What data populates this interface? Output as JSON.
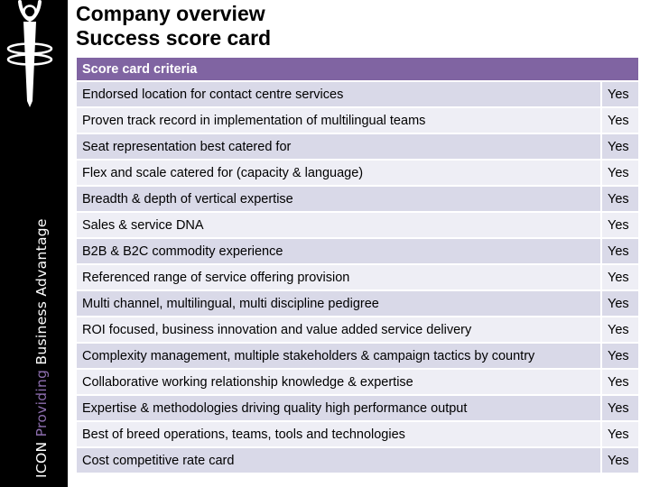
{
  "title": {
    "line1": "Company overview",
    "line2": "Success score card"
  },
  "sidebar": {
    "brand": "ICON",
    "tagline": "Providing",
    "suffix": "Business Advantage"
  },
  "table": {
    "header": "Score card criteria",
    "rows": [
      {
        "criterion": "Endorsed location for contact centre services",
        "answer": "Yes"
      },
      {
        "criterion": "Proven track record in implementation of multilingual teams",
        "answer": "Yes"
      },
      {
        "criterion": "Seat representation best catered for",
        "answer": "Yes"
      },
      {
        "criterion": "Flex and scale catered for (capacity & language)",
        "answer": "Yes"
      },
      {
        "criterion": "Breadth & depth of vertical expertise",
        "answer": "Yes"
      },
      {
        "criterion": "Sales & service DNA",
        "answer": "Yes"
      },
      {
        "criterion": "B2B & B2C commodity experience",
        "answer": "Yes"
      },
      {
        "criterion": "Referenced range of service offering provision",
        "answer": "Yes"
      },
      {
        "criterion": "Multi channel, multilingual, multi discipline pedigree",
        "answer": "Yes"
      },
      {
        "criterion": "ROI focused, business innovation and value added service delivery",
        "answer": "Yes"
      },
      {
        "criterion": "Complexity management, multiple stakeholders & campaign tactics by country",
        "answer": "Yes"
      },
      {
        "criterion": "Collaborative working relationship knowledge & expertise",
        "answer": "Yes"
      },
      {
        "criterion": "Expertise & methodologies driving quality high performance output",
        "answer": "Yes"
      },
      {
        "criterion": "Best of breed operations, teams, tools and technologies",
        "answer": "Yes"
      },
      {
        "criterion": "Cost competitive rate card",
        "answer": "Yes"
      }
    ]
  },
  "colors": {
    "sidebar": "#000000",
    "header": "#8064a2",
    "row_dark": "#d9d9e8",
    "row_light": "#eeeef5",
    "accent_text": "#8e6fb0"
  }
}
